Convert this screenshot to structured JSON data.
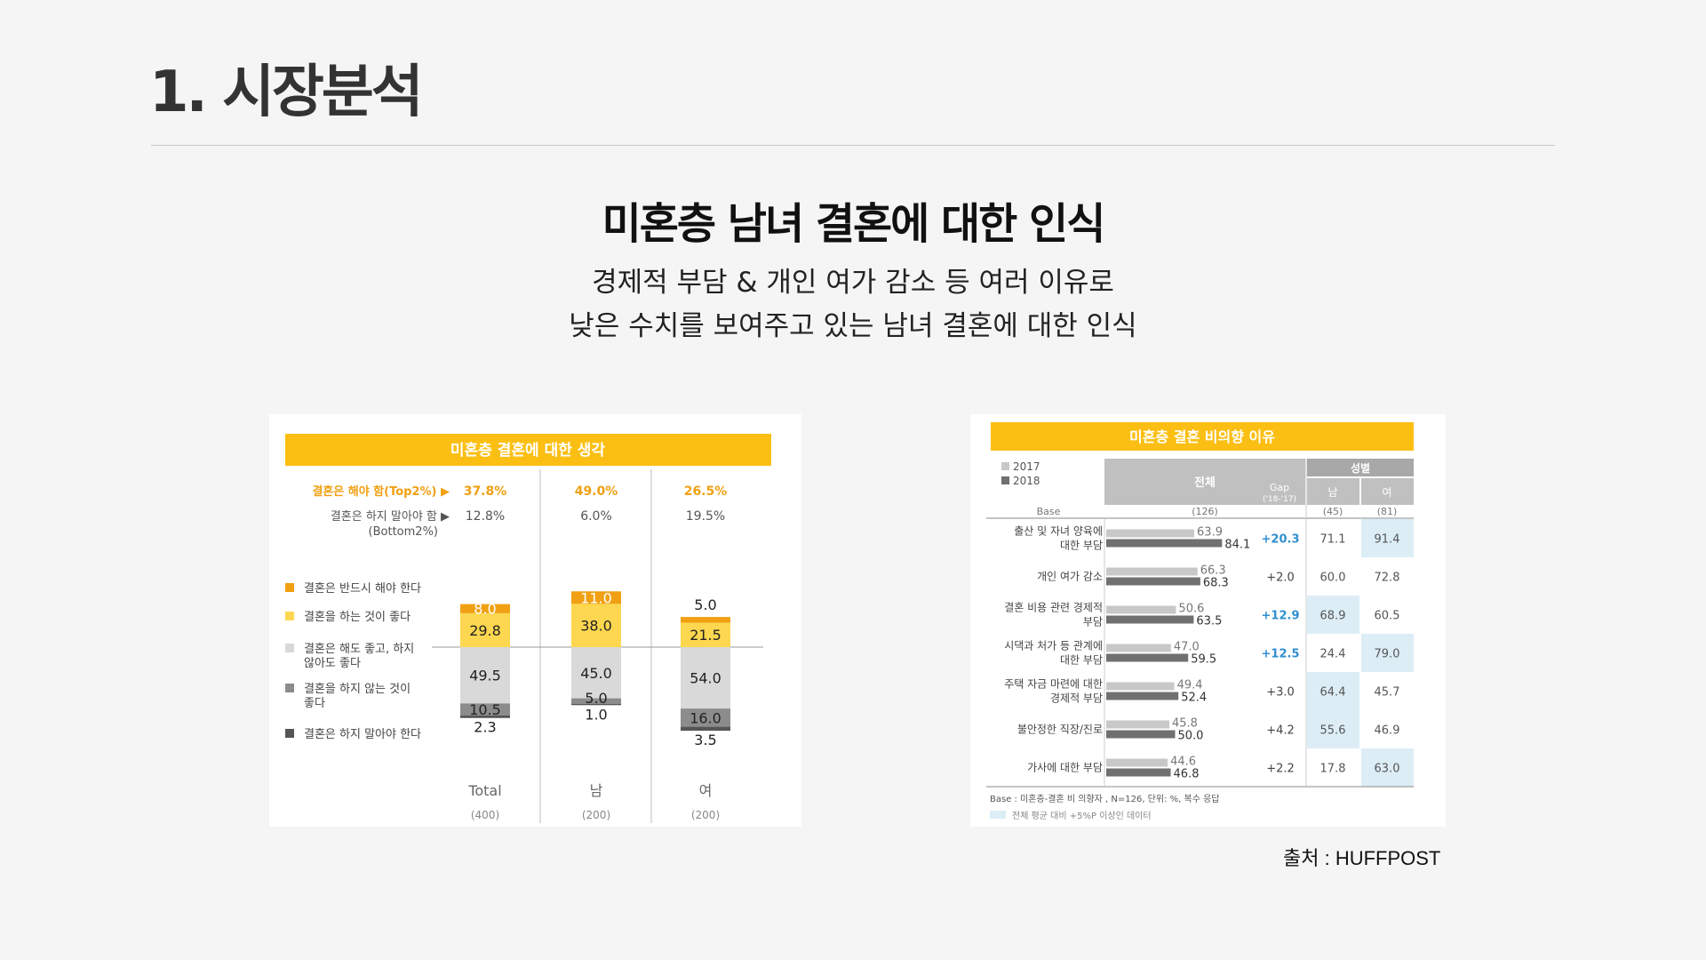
{
  "page": {
    "title": "1. 시장분석",
    "heading": "미혼층 남녀 결혼에 대한 인식",
    "subtitle_lines": [
      "경제적 부담 & 개인 여가 감소 등 여러 이유로",
      "낮은 수치를 보여주고 있는 남녀 결혼에 대한 인식"
    ],
    "source": "출처 : HUFFPOST"
  },
  "chart_data": [
    {
      "type": "bar",
      "stacked": true,
      "title": "미혼층 결혼에 대한 생각",
      "categories": [
        "Total",
        "남",
        "여"
      ],
      "bases": [
        "(400)",
        "(200)",
        "(200)"
      ],
      "top2_label": "결혼은 해야 함(Top2%) ▶",
      "top2_values": [
        "37.8%",
        "49.0%",
        "26.5%"
      ],
      "bottom2_label_lines": [
        "결혼은 하지 말아야 함 ▶",
        "(Bottom2%)"
      ],
      "bottom2_values": [
        "12.8%",
        "6.0%",
        "19.5%"
      ],
      "series": [
        {
          "name_lines": [
            "결혼은 반드시 해야 한다"
          ],
          "values": [
            8.0,
            11.0,
            5.0
          ],
          "color": "#f0a012"
        },
        {
          "name_lines": [
            "결혼을 하는 것이 좋다"
          ],
          "values": [
            29.8,
            38.0,
            21.5
          ],
          "color": "#fdd74f"
        },
        {
          "name_lines": [
            "결혼은 해도 좋고, 하지",
            "않아도 좋다"
          ],
          "values": [
            49.5,
            45.0,
            54.0
          ],
          "color": "#d9d9d9"
        },
        {
          "name_lines": [
            "결혼을 하지 않는 것이",
            "좋다"
          ],
          "values": [
            10.5,
            5.0,
            16.0
          ],
          "color": "#8c8c8c"
        },
        {
          "name_lines": [
            "결혼은 하지 말아야 한다"
          ],
          "values": [
            2.3,
            1.0,
            3.5
          ],
          "color": "#555555"
        }
      ]
    },
    {
      "type": "bar",
      "orientation": "horizontal",
      "title": "미혼층 결혼 비의향 이유",
      "legend": [
        "2017",
        "2018"
      ],
      "series_colors": [
        "#c8c8c8",
        "#707070"
      ],
      "headers": {
        "total": "전체",
        "gap": "Gap",
        "gap_sub": "('18-'17)",
        "gender": "성별",
        "male": "남",
        "female": "여",
        "base": "Base"
      },
      "bases": {
        "total": "(126)",
        "male": "(45)",
        "female": "(81)"
      },
      "rows": [
        {
          "label_lines": [
            "출산 및 자녀 양육에",
            "대한 부담"
          ],
          "y2017": 63.9,
          "y2018": 84.1,
          "gap": "+20.3",
          "male": "71.1",
          "female": "91.4",
          "gap_hl": true,
          "male_hl": false,
          "female_hl": true
        },
        {
          "label_lines": [
            "개인 여가 감소"
          ],
          "y2017": 66.3,
          "y2018": 68.3,
          "gap": "+2.0",
          "male": "60.0",
          "female": "72.8",
          "gap_hl": false,
          "male_hl": false,
          "female_hl": false
        },
        {
          "label_lines": [
            "결혼 비용 관련 경제적",
            "부담"
          ],
          "y2017": 50.6,
          "y2018": 63.5,
          "gap": "+12.9",
          "male": "68.9",
          "female": "60.5",
          "gap_hl": true,
          "male_hl": true,
          "female_hl": false
        },
        {
          "label_lines": [
            "시댁과 처가 등 관계에",
            "대한 부담"
          ],
          "y2017": 47.0,
          "y2018": 59.5,
          "gap": "+12.5",
          "male": "24.4",
          "female": "79.0",
          "gap_hl": true,
          "male_hl": false,
          "female_hl": true
        },
        {
          "label_lines": [
            "주택 자금 마련에 대한",
            "경제적 부담"
          ],
          "y2017": 49.4,
          "y2018": 52.4,
          "gap": "+3.0",
          "male": "64.4",
          "female": "45.7",
          "gap_hl": false,
          "male_hl": true,
          "female_hl": false
        },
        {
          "label_lines": [
            "불안정한 직장/진로"
          ],
          "y2017": 45.8,
          "y2018": 50.0,
          "gap": "+4.2",
          "male": "55.6",
          "female": "46.9",
          "gap_hl": false,
          "male_hl": true,
          "female_hl": false
        },
        {
          "label_lines": [
            "가사에 대한 부담"
          ],
          "y2017": 44.6,
          "y2018": 46.8,
          "gap": "+2.2",
          "male": "17.8",
          "female": "63.0",
          "gap_hl": false,
          "male_hl": false,
          "female_hl": true
        }
      ],
      "footnote": "Base : 미혼층-결혼 비 의향자 , N=126, 단위: %, 복수 응답",
      "highlight_note": "전체 평균 대비 +5%P 이상인 데이터",
      "highlight_color": "#dcedf6",
      "accent_color": "#2f8fd0"
    }
  ],
  "colors": {
    "header_bar": "#fbbf14",
    "top2_text": "#f0a012",
    "background": "#f5f5f5"
  }
}
